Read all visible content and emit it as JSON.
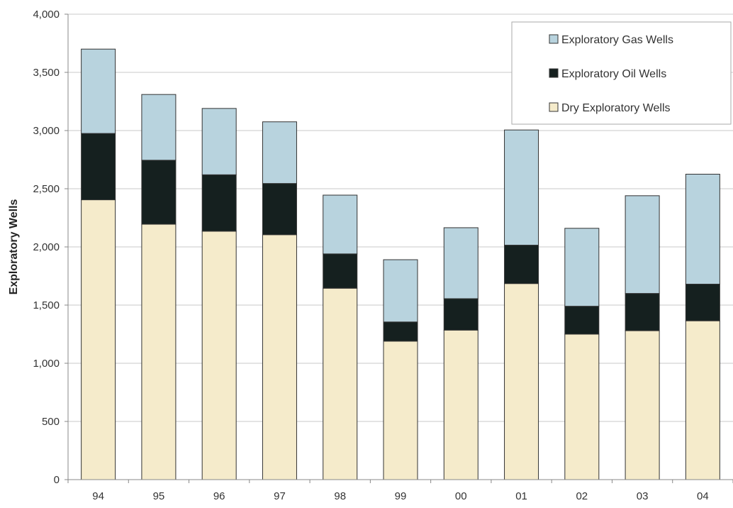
{
  "chart_data": {
    "type": "bar",
    "stacked": true,
    "title": "",
    "xlabel": "",
    "ylabel": "Exploratory Wells",
    "categories": [
      "94",
      "95",
      "96",
      "97",
      "98",
      "99",
      "00",
      "01",
      "02",
      "03",
      "04"
    ],
    "series": [
      {
        "name": "Dry Exploratory Wells",
        "color": "#f5ebcb",
        "values": [
          2405,
          2195,
          2135,
          2105,
          1645,
          1190,
          1285,
          1685,
          1250,
          1280,
          1365
        ]
      },
      {
        "name": "Exploratory Oil Wells",
        "color": "#15201f",
        "values": [
          570,
          550,
          485,
          440,
          295,
          165,
          270,
          330,
          240,
          320,
          315
        ]
      },
      {
        "name": "Exploratory Gas Wells",
        "color": "#b8d3de",
        "values": [
          725,
          565,
          570,
          530,
          505,
          535,
          610,
          990,
          670,
          840,
          945
        ]
      }
    ],
    "ylim": [
      0,
      4000
    ],
    "yticks": [
      0,
      500,
      1000,
      1500,
      2000,
      2500,
      3000,
      3500,
      4000
    ],
    "ytick_labels": [
      "0",
      "500",
      "1,000",
      "1,500",
      "2,000",
      "2,500",
      "3,000",
      "3,500",
      "4,000"
    ],
    "grid": "horizontal",
    "legend_position": "top-right",
    "legend_order": [
      "Exploratory Gas Wells",
      "Exploratory Oil Wells",
      "Dry Exploratory Wells"
    ],
    "colors": {
      "bar_outline": "#333333",
      "gridline": "#c8c8c8",
      "axis": "#888888",
      "legend_border": "#aaaaaa"
    }
  }
}
